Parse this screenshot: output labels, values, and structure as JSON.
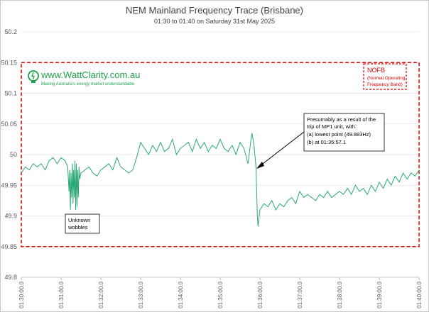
{
  "chart_data": {
    "type": "line",
    "title": "NEM Mainland Frequency Trace (Brisbane)",
    "subtitle": "01:30 to 01:40 on Saturday 31st May 2025",
    "xlabel": "",
    "ylabel": "",
    "ylim": [
      49.8,
      50.2
    ],
    "yticks": [
      "49.8",
      "49.85",
      "49.9",
      "49.95",
      "50",
      "50.05",
      "50.1",
      "50.15",
      "50.2"
    ],
    "xticks": [
      "01:30:00.0",
      "01:31:00.0",
      "01:32:00.0",
      "01:33:00.0",
      "01:34:00.0",
      "01:35:00.0",
      "01:36:00.0",
      "01:37:00.0",
      "01:38:00.0",
      "01:39:00.0",
      "01:40:00.0"
    ],
    "grid": "horizontal",
    "line_color": "#2aa876",
    "series": [
      {
        "x": [
          "01:30:00.0",
          "01:30:06.0",
          "01:30:12.0",
          "01:30:18.0",
          "01:30:24.0",
          "01:30:30.0",
          "01:30:36.0",
          "01:30:42.0",
          "01:30:48.0",
          "01:30:54.0",
          "01:31:00.0",
          "01:31:06.0",
          "01:31:10.0",
          "01:31:12.0",
          "01:31:13.0",
          "01:31:14.0",
          "01:31:15.0",
          "01:31:16.0",
          "01:31:17.0",
          "01:31:18.0",
          "01:31:19.0",
          "01:31:20.0",
          "01:31:21.0",
          "01:31:22.0",
          "01:31:23.0",
          "01:31:24.0",
          "01:31:25.0",
          "01:31:26.0",
          "01:31:27.0",
          "01:31:28.0",
          "01:31:30.0",
          "01:31:36.0",
          "01:31:42.0",
          "01:31:48.0",
          "01:31:54.0",
          "01:32:00.0",
          "01:32:06.0",
          "01:32:12.0",
          "01:32:18.0",
          "01:32:24.0",
          "01:32:30.0",
          "01:32:36.0",
          "01:32:42.0",
          "01:32:48.0",
          "01:32:54.0",
          "01:33:00.0",
          "01:33:06.0",
          "01:33:12.0",
          "01:33:18.0",
          "01:33:24.0",
          "01:33:30.0",
          "01:33:36.0",
          "01:33:42.0",
          "01:33:48.0",
          "01:33:54.0",
          "01:34:00.0",
          "01:34:06.0",
          "01:34:12.0",
          "01:34:18.0",
          "01:34:24.0",
          "01:34:30.0",
          "01:34:36.0",
          "01:34:42.0",
          "01:34:48.0",
          "01:34:54.0",
          "01:35:00.0",
          "01:35:06.0",
          "01:35:12.0",
          "01:35:18.0",
          "01:35:24.0",
          "01:35:30.0",
          "01:35:36.0",
          "01:35:42.0",
          "01:35:46.0",
          "01:35:48.0",
          "01:35:51.0",
          "01:35:54.0",
          "01:35:56.0",
          "01:35:57.1",
          "01:36:00.0",
          "01:36:06.0",
          "01:36:12.0",
          "01:36:18.0",
          "01:36:24.0",
          "01:36:30.0",
          "01:36:36.0",
          "01:36:42.0",
          "01:36:48.0",
          "01:36:54.0",
          "01:37:00.0",
          "01:37:06.0",
          "01:37:12.0",
          "01:37:18.0",
          "01:37:24.0",
          "01:37:30.0",
          "01:37:36.0",
          "01:37:42.0",
          "01:37:48.0",
          "01:37:54.0",
          "01:38:00.0",
          "01:38:06.0",
          "01:38:12.0",
          "01:38:18.0",
          "01:38:24.0",
          "01:38:30.0",
          "01:38:36.0",
          "01:38:42.0",
          "01:38:48.0",
          "01:38:54.0",
          "01:39:00.0",
          "01:39:06.0",
          "01:39:12.0",
          "01:39:18.0",
          "01:39:24.0",
          "01:39:30.0",
          "01:39:36.0",
          "01:39:42.0",
          "01:39:48.0",
          "01:39:54.0",
          "01:40:00.0"
        ],
        "values": [
          49.97,
          49.98,
          49.975,
          49.985,
          49.98,
          49.985,
          49.975,
          49.99,
          49.995,
          49.985,
          49.995,
          49.99,
          49.98,
          49.94,
          49.975,
          49.91,
          49.97,
          49.93,
          49.985,
          49.92,
          49.975,
          49.93,
          49.99,
          49.91,
          49.985,
          49.915,
          49.975,
          49.93,
          49.98,
          49.96,
          49.97,
          49.975,
          49.98,
          49.97,
          49.965,
          49.975,
          49.98,
          49.985,
          49.975,
          49.995,
          49.98,
          49.975,
          49.97,
          49.975,
          49.995,
          50.02,
          50.01,
          50.0,
          50.015,
          50.005,
          50.02,
          50.005,
          50.01,
          50.025,
          50.0,
          50.01,
          50.015,
          50.02,
          50.005,
          50.025,
          50.01,
          50.02,
          50.005,
          50.015,
          50.01,
          50.025,
          50.01,
          50.005,
          50.015,
          50.0,
          50.02,
          50.01,
          49.985,
          50.02,
          50.035,
          50.015,
          49.98,
          49.9,
          49.883,
          49.91,
          49.92,
          49.915,
          49.925,
          49.91,
          49.92,
          49.915,
          49.925,
          49.93,
          49.92,
          49.94,
          49.93,
          49.935,
          49.93,
          49.925,
          49.935,
          49.93,
          49.94,
          49.93,
          49.935,
          49.94,
          49.935,
          49.945,
          49.935,
          49.95,
          49.94,
          49.945,
          49.935,
          49.95,
          49.94,
          49.955,
          49.945,
          49.96,
          49.95,
          49.965,
          49.955,
          49.97,
          49.96,
          49.97,
          49.965,
          49.975
        ]
      }
    ],
    "annotations": [
      {
        "text_lines": [
          "Presumably as a result of the",
          "trip of MP1 unit, with:",
          "(a)  lowest point (49.883Hz)",
          "(b)  at 01:35:57.1"
        ]
      },
      {
        "text_lines": [
          "Unknown",
          "wobbles"
        ]
      },
      {
        "text_lines": [
          "NOFB",
          "(Normal Operating",
          "Frequency Band)"
        ]
      }
    ],
    "nofb_band": [
      49.85,
      50.15
    ]
  },
  "logo": {
    "main": "www.WattClarity.com.au",
    "tagline": "Making Australia's energy market understandable"
  }
}
